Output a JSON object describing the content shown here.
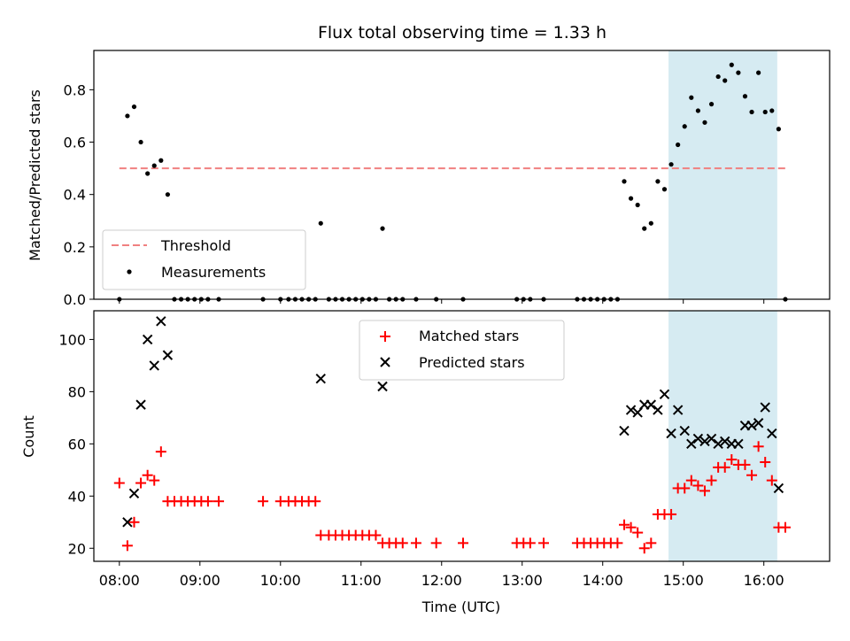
{
  "chart_data": {
    "title": "Flux total observing time = 1.33 h",
    "xlabel": "Time (UTC)",
    "x_ticks": [
      "08:00",
      "09:00",
      "10:00",
      "11:00",
      "12:00",
      "13:00",
      "14:00",
      "15:00",
      "16:00"
    ],
    "x_range": [
      "07:41",
      "16:49"
    ],
    "highlight": {
      "start": "14:49",
      "end": "16:10",
      "color": "#add8e6"
    },
    "top": {
      "type": "scatter",
      "ylabel": "Matched/Predicted stars",
      "ylim": [
        0,
        0.95
      ],
      "yticks": [
        "0.0",
        "0.2",
        "0.4",
        "0.6",
        "0.8"
      ],
      "legend": {
        "position": "lower-left",
        "entries": [
          "Threshold",
          "Measurements"
        ]
      },
      "series": [
        {
          "name": "Threshold",
          "style": "dashed-line",
          "color": "#f08080",
          "points": [
            [
              "08:00",
              0.5
            ],
            [
              "16:17",
              0.5
            ]
          ]
        },
        {
          "name": "Measurements",
          "style": "dot",
          "color": "#000000",
          "points": [
            [
              "08:00",
              0.0
            ],
            [
              "08:06",
              0.7
            ],
            [
              "08:11",
              0.735
            ],
            [
              "08:16",
              0.6
            ],
            [
              "08:21",
              0.48
            ],
            [
              "08:26",
              0.51
            ],
            [
              "08:31",
              0.53
            ],
            [
              "08:36",
              0.4
            ],
            [
              "08:41",
              0.0
            ],
            [
              "08:46",
              0.0
            ],
            [
              "08:51",
              0.0
            ],
            [
              "08:56",
              0.0
            ],
            [
              "09:01",
              0.0
            ],
            [
              "09:06",
              0.0
            ],
            [
              "09:14",
              0.0
            ],
            [
              "09:47",
              0.0
            ],
            [
              "10:00",
              0.0
            ],
            [
              "10:06",
              0.0
            ],
            [
              "10:11",
              0.0
            ],
            [
              "10:16",
              0.0
            ],
            [
              "10:21",
              0.0
            ],
            [
              "10:26",
              0.0
            ],
            [
              "10:30",
              0.29
            ],
            [
              "10:36",
              0.0
            ],
            [
              "10:41",
              0.0
            ],
            [
              "10:46",
              0.0
            ],
            [
              "10:51",
              0.0
            ],
            [
              "10:56",
              0.0
            ],
            [
              "11:01",
              0.0
            ],
            [
              "11:06",
              0.0
            ],
            [
              "11:11",
              0.0
            ],
            [
              "11:16",
              0.27
            ],
            [
              "11:21",
              0.0
            ],
            [
              "11:26",
              0.0
            ],
            [
              "11:31",
              0.0
            ],
            [
              "11:41",
              0.0
            ],
            [
              "11:56",
              0.0
            ],
            [
              "12:16",
              0.0
            ],
            [
              "12:56",
              0.0
            ],
            [
              "13:01",
              0.0
            ],
            [
              "13:06",
              0.0
            ],
            [
              "13:16",
              0.0
            ],
            [
              "13:41",
              0.0
            ],
            [
              "13:46",
              0.0
            ],
            [
              "13:51",
              0.0
            ],
            [
              "13:56",
              0.0
            ],
            [
              "14:01",
              0.0
            ],
            [
              "14:06",
              0.0
            ],
            [
              "14:11",
              0.0
            ],
            [
              "14:16",
              0.45
            ],
            [
              "14:21",
              0.385
            ],
            [
              "14:26",
              0.36
            ],
            [
              "14:31",
              0.27
            ],
            [
              "14:36",
              0.29
            ],
            [
              "14:41",
              0.45
            ],
            [
              "14:46",
              0.42
            ],
            [
              "14:51",
              0.515
            ],
            [
              "14:56",
              0.59
            ],
            [
              "15:01",
              0.66
            ],
            [
              "15:06",
              0.77
            ],
            [
              "15:11",
              0.72
            ],
            [
              "15:16",
              0.675
            ],
            [
              "15:21",
              0.745
            ],
            [
              "15:26",
              0.85
            ],
            [
              "15:31",
              0.835
            ],
            [
              "15:36",
              0.895
            ],
            [
              "15:41",
              0.865
            ],
            [
              "15:46",
              0.775
            ],
            [
              "15:51",
              0.715
            ],
            [
              "15:56",
              0.865
            ],
            [
              "16:01",
              0.715
            ],
            [
              "16:06",
              0.72
            ],
            [
              "16:11",
              0.65
            ],
            [
              "16:16",
              0.0
            ]
          ]
        }
      ]
    },
    "bottom": {
      "type": "scatter",
      "ylabel": "Count",
      "ylim": [
        15,
        111
      ],
      "yticks": [
        "20",
        "40",
        "60",
        "80",
        "100"
      ],
      "legend": {
        "position": "top-center",
        "entries": [
          "Matched stars",
          "Predicted stars"
        ]
      },
      "series": [
        {
          "name": "Matched stars",
          "marker": "plus",
          "color": "#ff0000",
          "points": [
            [
              "08:00",
              45
            ],
            [
              "08:06",
              21
            ],
            [
              "08:11",
              30
            ],
            [
              "08:16",
              45
            ],
            [
              "08:21",
              48
            ],
            [
              "08:26",
              46
            ],
            [
              "08:31",
              57
            ],
            [
              "08:36",
              38
            ],
            [
              "08:41",
              38
            ],
            [
              "08:46",
              38
            ],
            [
              "08:51",
              38
            ],
            [
              "08:56",
              38
            ],
            [
              "09:01",
              38
            ],
            [
              "09:06",
              38
            ],
            [
              "09:14",
              38
            ],
            [
              "09:47",
              38
            ],
            [
              "10:00",
              38
            ],
            [
              "10:06",
              38
            ],
            [
              "10:11",
              38
            ],
            [
              "10:16",
              38
            ],
            [
              "10:21",
              38
            ],
            [
              "10:26",
              38
            ],
            [
              "10:30",
              25
            ],
            [
              "10:36",
              25
            ],
            [
              "10:41",
              25
            ],
            [
              "10:46",
              25
            ],
            [
              "10:51",
              25
            ],
            [
              "10:56",
              25
            ],
            [
              "11:01",
              25
            ],
            [
              "11:06",
              25
            ],
            [
              "11:11",
              25
            ],
            [
              "11:16",
              22
            ],
            [
              "11:21",
              22
            ],
            [
              "11:26",
              22
            ],
            [
              "11:31",
              22
            ],
            [
              "11:41",
              22
            ],
            [
              "11:56",
              22
            ],
            [
              "12:16",
              22
            ],
            [
              "12:56",
              22
            ],
            [
              "13:01",
              22
            ],
            [
              "13:06",
              22
            ],
            [
              "13:16",
              22
            ],
            [
              "13:41",
              22
            ],
            [
              "13:46",
              22
            ],
            [
              "13:51",
              22
            ],
            [
              "13:56",
              22
            ],
            [
              "14:01",
              22
            ],
            [
              "14:06",
              22
            ],
            [
              "14:11",
              22
            ],
            [
              "14:16",
              29
            ],
            [
              "14:21",
              28
            ],
            [
              "14:26",
              26
            ],
            [
              "14:31",
              20
            ],
            [
              "14:36",
              22
            ],
            [
              "14:41",
              33
            ],
            [
              "14:46",
              33
            ],
            [
              "14:51",
              33
            ],
            [
              "14:56",
              43
            ],
            [
              "15:01",
              43
            ],
            [
              "15:06",
              46
            ],
            [
              "15:11",
              44
            ],
            [
              "15:16",
              42
            ],
            [
              "15:21",
              46
            ],
            [
              "15:26",
              51
            ],
            [
              "15:31",
              51
            ],
            [
              "15:36",
              54
            ],
            [
              "15:41",
              52
            ],
            [
              "15:46",
              52
            ],
            [
              "15:51",
              48
            ],
            [
              "15:56",
              59
            ],
            [
              "16:01",
              53
            ],
            [
              "16:06",
              46
            ],
            [
              "16:11",
              28
            ],
            [
              "16:16",
              28
            ]
          ]
        },
        {
          "name": "Predicted stars",
          "marker": "x",
          "color": "#000000",
          "points": [
            [
              "08:06",
              30
            ],
            [
              "08:11",
              41
            ],
            [
              "08:16",
              75
            ],
            [
              "08:21",
              100
            ],
            [
              "08:26",
              90
            ],
            [
              "08:31",
              107
            ],
            [
              "08:36",
              94
            ],
            [
              "10:30",
              85
            ],
            [
              "11:16",
              82
            ],
            [
              "14:16",
              65
            ],
            [
              "14:21",
              73
            ],
            [
              "14:26",
              72
            ],
            [
              "14:31",
              75
            ],
            [
              "14:36",
              75
            ],
            [
              "14:41",
              73
            ],
            [
              "14:46",
              79
            ],
            [
              "14:51",
              64
            ],
            [
              "14:56",
              73
            ],
            [
              "15:01",
              65
            ],
            [
              "15:06",
              60
            ],
            [
              "15:11",
              62
            ],
            [
              "15:16",
              61
            ],
            [
              "15:21",
              62
            ],
            [
              "15:26",
              60
            ],
            [
              "15:31",
              61
            ],
            [
              "15:36",
              60
            ],
            [
              "15:41",
              60
            ],
            [
              "15:46",
              67
            ],
            [
              "15:51",
              67
            ],
            [
              "15:56",
              68
            ],
            [
              "16:01",
              74
            ],
            [
              "16:06",
              64
            ],
            [
              "16:11",
              43
            ]
          ]
        }
      ]
    }
  }
}
